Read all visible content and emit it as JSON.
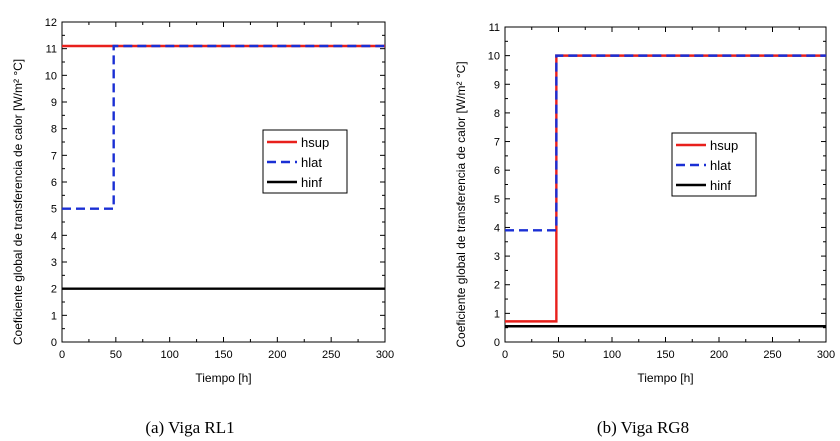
{
  "chart_data": [
    {
      "type": "line",
      "caption": "(a) Viga RL1",
      "xlabel": "Tiempo [h]",
      "ylabel": "Coeficiente global de transferencia de calor  [W/m² °C]",
      "xlim": [
        0,
        300
      ],
      "ylim": [
        0,
        12
      ],
      "xticks": [
        0,
        50,
        100,
        150,
        200,
        250,
        300
      ],
      "yticks": [
        0,
        1,
        2,
        3,
        4,
        5,
        6,
        7,
        8,
        9,
        10,
        11,
        12
      ],
      "legend_position": "center-right",
      "series": [
        {
          "name": "hsup",
          "color": "#e8201c",
          "dash": "solid",
          "x": [
            0,
            300
          ],
          "y": [
            11.1,
            11.1
          ]
        },
        {
          "name": "hlat",
          "color": "#1a2fd4",
          "dash": "dashed",
          "x": [
            0,
            48,
            48,
            300
          ],
          "y": [
            5.0,
            5.0,
            11.1,
            11.1
          ]
        },
        {
          "name": "hinf",
          "color": "#000000",
          "dash": "solid",
          "x": [
            0,
            300
          ],
          "y": [
            2.0,
            2.0
          ]
        }
      ]
    },
    {
      "type": "line",
      "caption": "(b) Viga RG8",
      "xlabel": "Tiempo [h]",
      "ylabel": "Coeficiente global de transferencia de calor  [W/m² °C]",
      "xlim": [
        0,
        300
      ],
      "ylim": [
        0,
        11
      ],
      "xticks": [
        0,
        50,
        100,
        150,
        200,
        250,
        300
      ],
      "yticks": [
        0,
        1,
        2,
        3,
        4,
        5,
        6,
        7,
        8,
        9,
        10,
        11
      ],
      "legend_position": "center-right",
      "series": [
        {
          "name": "hsup",
          "color": "#e8201c",
          "dash": "solid",
          "x": [
            0,
            48,
            48,
            300
          ],
          "y": [
            0.72,
            0.72,
            10.0,
            10.0
          ]
        },
        {
          "name": "hlat",
          "color": "#1a2fd4",
          "dash": "dashed",
          "x": [
            0,
            48,
            48,
            300
          ],
          "y": [
            3.9,
            3.9,
            10.0,
            10.0
          ]
        },
        {
          "name": "hinf",
          "color": "#000000",
          "dash": "solid",
          "x": [
            0,
            300
          ],
          "y": [
            0.55,
            0.55
          ]
        }
      ]
    }
  ]
}
